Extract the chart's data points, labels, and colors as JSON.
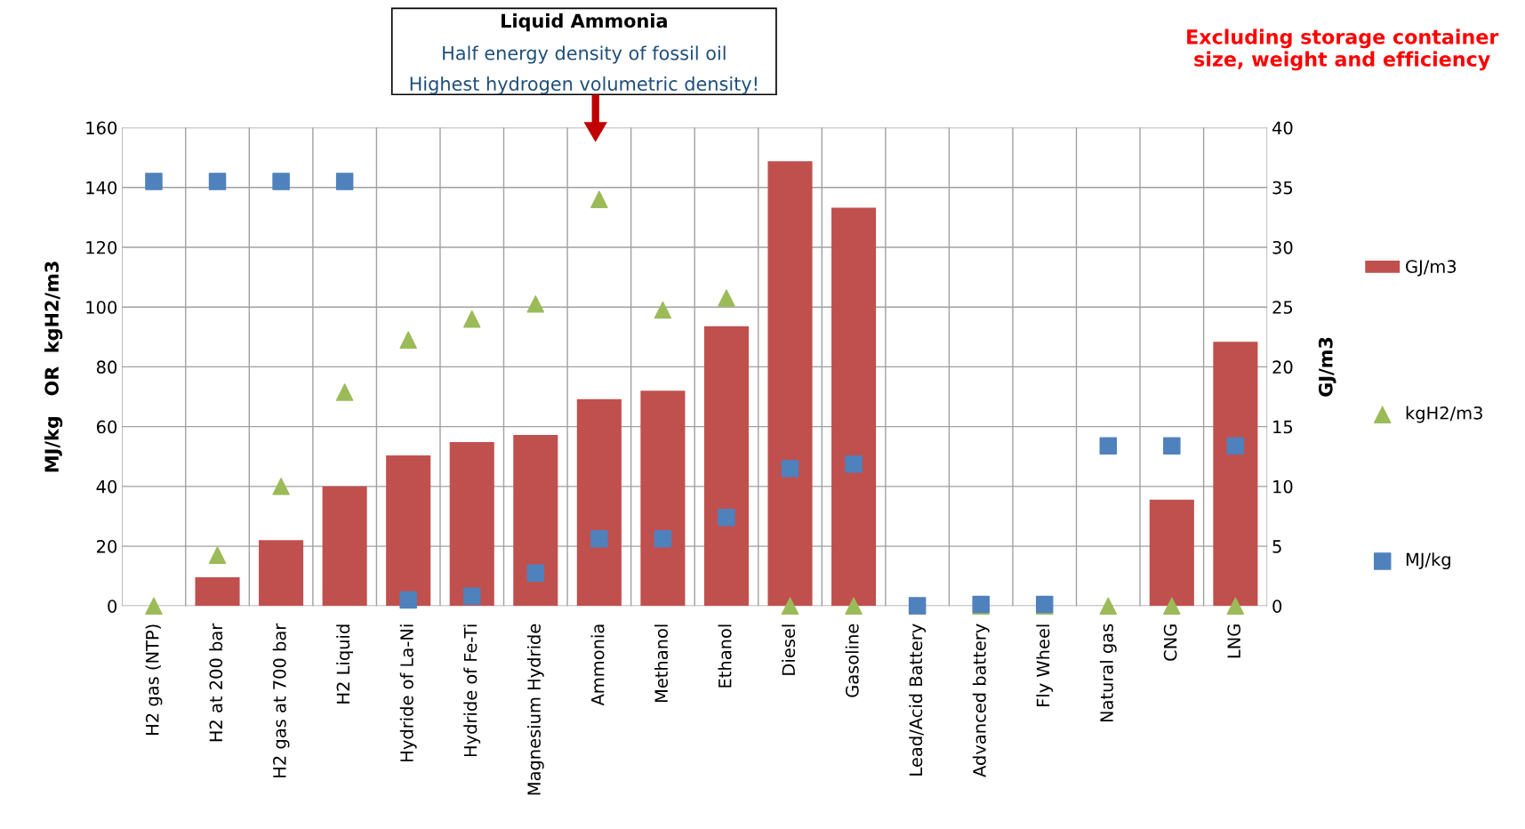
{
  "chart_data": {
    "type": "bar",
    "categories": [
      "H2 gas (NTP)",
      "H2 at 200 bar",
      "H2 gas at 700 bar",
      "H2 Liquid",
      "Hydride of La-Ni",
      "Hydride of Fe-Ti",
      "Magnesium Hydride",
      "Ammonia",
      "Methanol",
      "Ethanol",
      "Diesel",
      "Gasoline",
      "Lead/Acid Battery",
      "Advanced battery",
      "Fly Wheel",
      "Natural gas",
      "CNG",
      "LNG"
    ],
    "ylabel": "MJ/kg   OR  kgH2/m3",
    "y2label": "GJ/m3",
    "ylim": [
      0,
      160
    ],
    "yticks": [
      0,
      20,
      40,
      60,
      80,
      100,
      120,
      140,
      160
    ],
    "y2lim": [
      0,
      40
    ],
    "y2ticks": [
      0,
      5,
      10,
      15,
      20,
      25,
      30,
      35,
      40
    ],
    "grid": true,
    "legend": "right",
    "series": [
      {
        "name": "GJ/m3",
        "axis": "y2",
        "color": "#c0504d",
        "values": [
          0,
          2.4,
          5.5,
          10.0,
          12.6,
          13.7,
          14.3,
          17.3,
          18.0,
          23.4,
          37.2,
          33.3,
          0,
          0,
          0,
          0,
          8.9,
          22.1
        ]
      },
      {
        "name": "kgH2/m3",
        "type": "scatter",
        "marker": "triangle",
        "color": "#9bbb59",
        "values": [
          0,
          17,
          40,
          71.5,
          89,
          96,
          101,
          136,
          99,
          103,
          0,
          0,
          0,
          0,
          0,
          0,
          0,
          0
        ]
      },
      {
        "name": "MJ/kg",
        "type": "scatter",
        "marker": "square",
        "color": "#4f81bd",
        "values": [
          142,
          142,
          142,
          142,
          2,
          3.3,
          11,
          22.5,
          22.5,
          29.6,
          46,
          47.5,
          0.1,
          0.5,
          0.5,
          53.6,
          53.6,
          53.6
        ]
      }
    ],
    "annotations": [
      "Liquid Ammonia",
      "Half energy density of fossil oil",
      "Highest hydrogen volumetric density!",
      "Excluding storage container size, weight and efficiency"
    ]
  }
}
